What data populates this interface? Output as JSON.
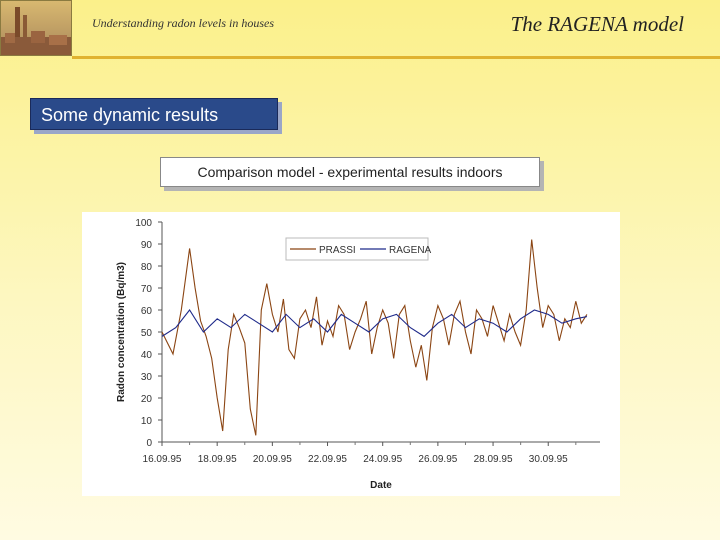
{
  "header": {
    "left_text": "Understanding radon levels in houses",
    "right_title": "The RAGENA model"
  },
  "section": {
    "title": "Some dynamic results"
  },
  "subtitle": {
    "text": "Comparison model - experimental results indoors"
  },
  "colors": {
    "prassi": "#8b4513",
    "ragena": "#1f2a8a",
    "section_bg": "#2a4a8a"
  },
  "chart_data": {
    "type": "line",
    "xlabel": "Date",
    "ylabel": "Radon concentration (Bq/m3)",
    "ylim": [
      0,
      100
    ],
    "yticks": [
      0,
      10,
      20,
      30,
      40,
      50,
      60,
      70,
      80,
      90,
      100
    ],
    "xlim": [
      "16.09.95",
      "01.10.95"
    ],
    "xtick_labels": [
      "16.09.95",
      "18.09.95",
      "20.09.95",
      "22.09.95",
      "24.09.95",
      "26.09.95",
      "28.09.95",
      "30.09.95"
    ],
    "legend_position": "top-center",
    "grid": false,
    "series": [
      {
        "name": "PRASSI",
        "x": [
          0,
          0.4,
          0.7,
          1.0,
          1.2,
          1.4,
          1.6,
          1.8,
          2.0,
          2.2,
          2.4,
          2.6,
          2.8,
          3.0,
          3.2,
          3.4,
          3.6,
          3.8,
          4.0,
          4.2,
          4.4,
          4.6,
          4.8,
          5.0,
          5.2,
          5.4,
          5.6,
          5.8,
          6.0,
          6.2,
          6.4,
          6.6,
          6.8,
          7.0,
          7.2,
          7.4,
          7.6,
          7.8,
          8.0,
          8.2,
          8.4,
          8.6,
          8.8,
          9.0,
          9.2,
          9.4,
          9.6,
          9.8,
          10.0,
          10.2,
          10.4,
          10.6,
          10.8,
          11.0,
          11.2,
          11.4,
          11.6,
          11.8,
          12.0,
          12.2,
          12.4,
          12.6,
          12.8,
          13.0,
          13.2,
          13.4,
          13.6,
          13.8,
          14.0,
          14.2,
          14.4,
          14.6,
          14.8,
          15.0,
          15.2,
          15.4
        ],
        "values": [
          50,
          40,
          60,
          88,
          70,
          55,
          48,
          38,
          20,
          5,
          42,
          58,
          52,
          45,
          15,
          3,
          60,
          72,
          58,
          50,
          65,
          42,
          38,
          56,
          60,
          52,
          66,
          44,
          55,
          48,
          62,
          58,
          42,
          50,
          56,
          64,
          40,
          52,
          60,
          54,
          38,
          58,
          62,
          46,
          34,
          44,
          28,
          52,
          62,
          56,
          44,
          58,
          64,
          50,
          40,
          60,
          56,
          48,
          62,
          54,
          46,
          58,
          50,
          44,
          60,
          92,
          70,
          52,
          62,
          58,
          46,
          56,
          52,
          64,
          54,
          58
        ],
        "color_key": "prassi"
      },
      {
        "name": "RAGENA",
        "x": [
          0,
          0.5,
          1.0,
          1.5,
          2.0,
          2.5,
          3.0,
          3.5,
          4.0,
          4.5,
          5.0,
          5.5,
          6.0,
          6.5,
          7.0,
          7.5,
          8.0,
          8.5,
          9.0,
          9.5,
          10.0,
          10.5,
          11.0,
          11.5,
          12.0,
          12.5,
          13.0,
          13.5,
          14.0,
          14.5,
          15.0,
          15.4
        ],
        "values": [
          48,
          52,
          60,
          50,
          56,
          52,
          58,
          54,
          50,
          58,
          52,
          56,
          50,
          58,
          54,
          50,
          56,
          58,
          52,
          48,
          54,
          58,
          52,
          56,
          54,
          50,
          56,
          60,
          58,
          54,
          56,
          57
        ],
        "color_key": "ragena"
      }
    ]
  }
}
